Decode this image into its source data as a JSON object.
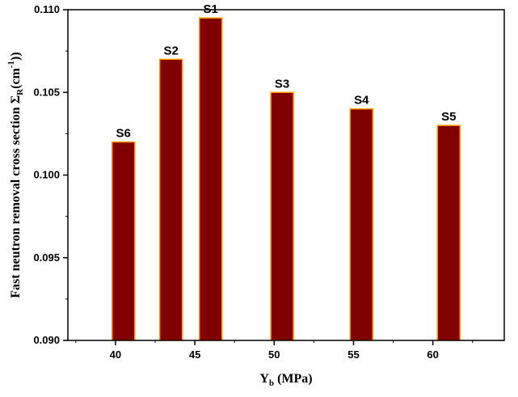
{
  "chart_data": {
    "type": "bar",
    "x": [
      40.5,
      43.5,
      46.0,
      50.5,
      55.5,
      61.0
    ],
    "values": [
      0.102,
      0.107,
      0.1095,
      0.105,
      0.104,
      0.103
    ],
    "bar_labels": [
      "S6",
      "S2",
      "S1",
      "S3",
      "S4",
      "S5"
    ],
    "xlabel_main": "Y",
    "xlabel_sub": "b",
    "xlabel_unit": " (MPa)",
    "ylabel_main": "Fast neutron removal cross section Σ",
    "ylabel_sub": "R",
    "ylabel_unit_open": "(cm",
    "ylabel_sup": "-1",
    "ylabel_unit_close": "))",
    "xlim": [
      37.0,
      64.5
    ],
    "ylim": [
      0.09,
      0.11
    ],
    "xticks": [
      40,
      45,
      50,
      55,
      60
    ],
    "xtick_labels": [
      "40",
      "45",
      "50",
      "55",
      "60"
    ],
    "yticks": [
      0.09,
      0.095,
      0.1,
      0.105,
      0.11
    ],
    "ytick_labels": [
      "0.090",
      "0.095",
      "0.100",
      "0.105",
      "0.110"
    ],
    "bar_color": "#800000",
    "bar_edge_color": "#ff9900",
    "grid": false,
    "legend": "none"
  }
}
